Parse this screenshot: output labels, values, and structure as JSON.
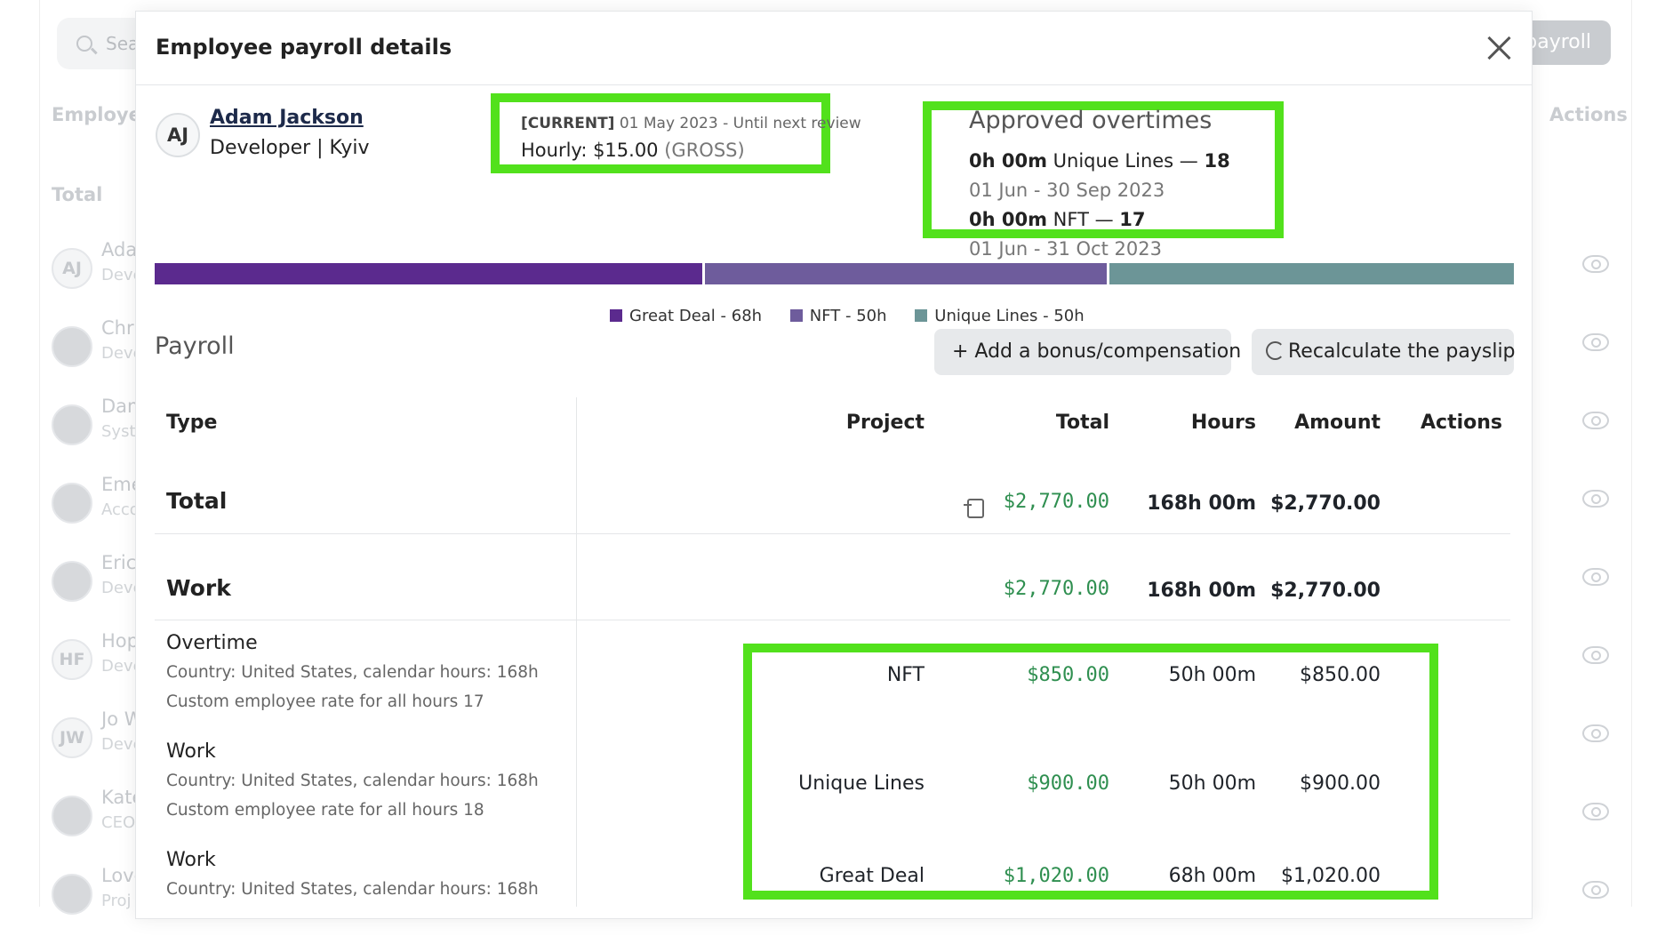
{
  "background": {
    "search_placeholder": "Sea",
    "run_payroll_label": "payroll",
    "col_employee": "Employee",
    "col_actions": "Actions",
    "total_label": "Total",
    "rows": [
      {
        "initials": "AJ",
        "name": "Ada",
        "role": "Deve"
      },
      {
        "initials": "",
        "name": "Chri",
        "role": "Deve"
      },
      {
        "initials": "",
        "name": "Dam",
        "role": "Syst"
      },
      {
        "initials": "",
        "name": "Eme",
        "role": "Acco"
      },
      {
        "initials": "",
        "name": "Eric",
        "role": "Deve"
      },
      {
        "initials": "HF",
        "name": "Hop",
        "role": "Deve"
      },
      {
        "initials": "JW",
        "name": "Jo W",
        "role": "Deve"
      },
      {
        "initials": "",
        "name": "Kate",
        "role": "CEO"
      },
      {
        "initials": "",
        "name": "Love",
        "role": "Proj"
      }
    ]
  },
  "modal": {
    "title": "Employee payroll details",
    "employee": {
      "initials": "AJ",
      "name": "Adam Jackson",
      "role": "Developer | Kyiv"
    },
    "rate": {
      "status": "[CURRENT]",
      "period": "01 May 2023 - Until next review",
      "label": "Hourly: $15.00",
      "type": "(GROSS)"
    },
    "overtimes": {
      "title": "Approved overtimes",
      "items": [
        {
          "duration": "0h 00m",
          "project": "Unique Lines —",
          "count": "18",
          "dates": "01 Jun - 30 Sep 2023"
        },
        {
          "duration": "0h 00m",
          "project": "NFT —",
          "count": "17",
          "dates": "01 Jun - 31 Oct 2023"
        }
      ]
    },
    "distribution": [
      {
        "label": "Great Deal - 68h",
        "hours": 68,
        "color": "#5b2a8e"
      },
      {
        "label": "NFT - 50h",
        "hours": 50,
        "color": "#6e5c9c"
      },
      {
        "label": "Unique Lines - 50h",
        "hours": 50,
        "color": "#6c9597"
      }
    ],
    "payroll": {
      "title": "Payroll",
      "add_bonus_label": "+ Add a bonus/compensation",
      "recalculate_label": "Recalculate the payslip",
      "columns": {
        "type": "Type",
        "project": "Project",
        "total": "Total",
        "hours": "Hours",
        "amount": "Amount",
        "actions": "Actions"
      },
      "total_row": {
        "label": "Total",
        "total": "$2,770.00",
        "hours": "168h 00m",
        "amount": "$2,770.00"
      },
      "work_row": {
        "label": "Work",
        "total": "$2,770.00",
        "hours": "168h 00m",
        "amount": "$2,770.00"
      },
      "items": [
        {
          "title": "Overtime",
          "line1": "Country: United States, calendar hours: 168h",
          "line2": "Custom employee rate for all hours 17",
          "project": "NFT",
          "total": "$850.00",
          "hours": "50h 00m",
          "amount": "$850.00"
        },
        {
          "title": "Work",
          "line1": "Country: United States, calendar hours: 168h",
          "line2": "Custom employee rate for all hours 18",
          "project": "Unique Lines",
          "total": "$900.00",
          "hours": "50h 00m",
          "amount": "$900.00"
        },
        {
          "title": "Work",
          "line1": "Country: United States, calendar hours: 168h",
          "line2": "",
          "project": "Great Deal",
          "total": "$1,020.00",
          "hours": "68h 00m",
          "amount": "$1,020.00"
        }
      ]
    }
  }
}
